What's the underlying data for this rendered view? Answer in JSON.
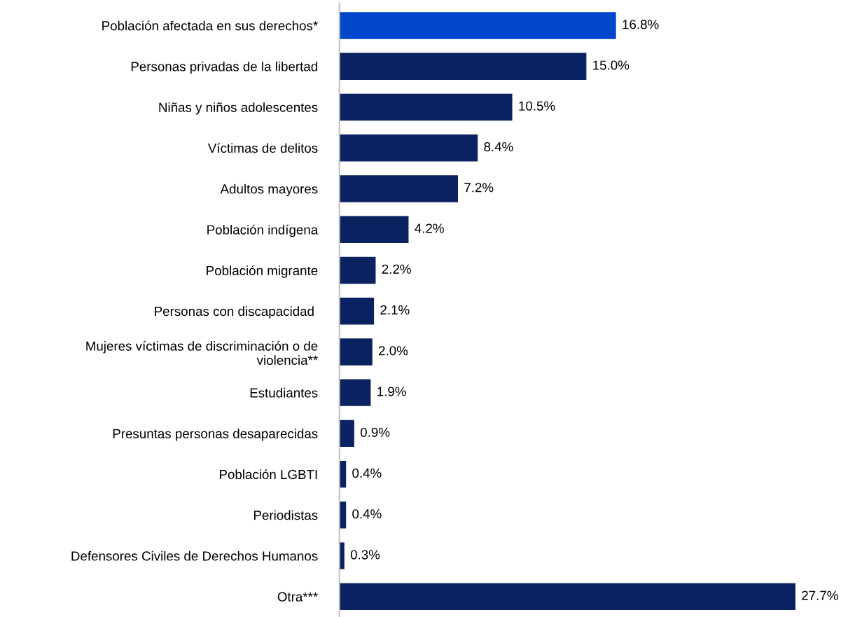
{
  "chart_data": {
    "type": "bar",
    "orientation": "horizontal",
    "categories": [
      "Población afectada en sus derechos*",
      "Personas privadas de la libertad",
      "Niñas y niños adolescentes",
      "Víctimas de delitos",
      "Adultos mayores",
      "Población indígena",
      "Población migrante",
      "Personas con discapacidad ",
      "Mujeres víctimas de discriminación o de violencia**",
      "Estudiantes",
      "Presuntas personas desaparecidas",
      "Población LGBTI",
      "Periodistas",
      "Defensores Civiles de Derechos Humanos",
      "Otra***"
    ],
    "values": [
      16.8,
      15.0,
      10.5,
      8.4,
      7.2,
      4.2,
      2.2,
      2.1,
      2.0,
      1.9,
      0.9,
      0.4,
      0.4,
      0.3,
      27.7
    ],
    "colors": [
      "#0047cc",
      "#0b2260",
      "#0b2260",
      "#0b2260",
      "#0b2260",
      "#0b2260",
      "#0b2260",
      "#0b2260",
      "#0b2260",
      "#0b2260",
      "#0b2260",
      "#0b2260",
      "#0b2260",
      "#0b2260",
      "#0b2260"
    ],
    "value_labels": [
      "16.8%",
      "15.0%",
      "10.5%",
      "8.4%",
      "7.2%",
      "4.2%",
      "2.2%",
      "2.1%",
      "2.0%",
      "1.9%",
      "0.9%",
      "0.4%",
      "0.4%",
      "0.3%",
      "27.7%"
    ],
    "tick_labels": "y",
    "grid": false,
    "legend": false
  }
}
